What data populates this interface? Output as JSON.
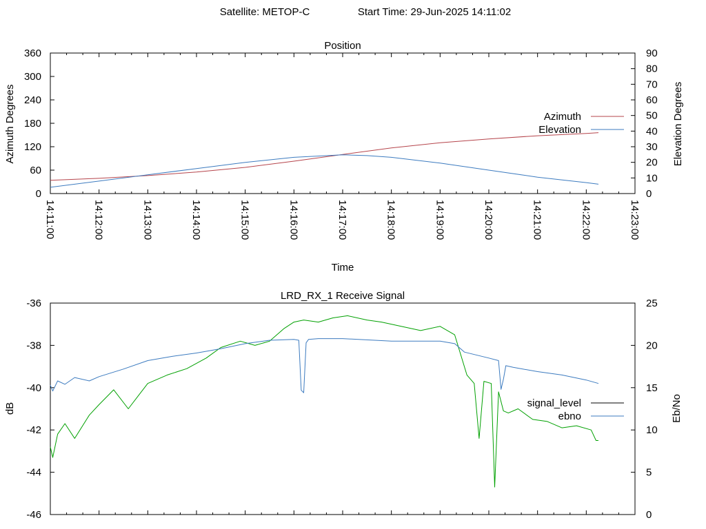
{
  "header": {
    "satellite": "Satellite: METOP-C",
    "start_time": "Start Time: 29-Jun-2025 14:11:02"
  },
  "chart_data": [
    {
      "type": "line",
      "title": "Position",
      "xlabel": "Time",
      "ylabel": "Azimuth Degrees",
      "y2label": "Elevation Degrees",
      "x_ticks": [
        "14:11:00",
        "14:12:00",
        "14:13:00",
        "14:14:00",
        "14:15:00",
        "14:16:00",
        "14:17:00",
        "14:18:00",
        "14:19:00",
        "14:20:00",
        "14:21:00",
        "14:22:00",
        "14:23:00"
      ],
      "xlim": [
        0,
        12
      ],
      "ylim": [
        0,
        360
      ],
      "y_ticks": [
        0,
        60,
        120,
        180,
        240,
        300,
        360
      ],
      "y2lim": [
        0,
        90
      ],
      "y2_ticks": [
        0,
        10,
        20,
        30,
        40,
        50,
        60,
        70,
        80,
        90
      ],
      "grid": false,
      "legend_position": "right",
      "x_unit": "minutes after 14:11:00",
      "series": [
        {
          "name": "Azimuth",
          "axis": "left",
          "color": "#b5434a",
          "x": [
            0,
            1,
            2,
            3,
            4,
            5,
            6,
            7,
            8,
            9,
            10,
            11,
            11.25
          ],
          "values": [
            34,
            39,
            46,
            55,
            67,
            83,
            100,
            117,
            130,
            140,
            148,
            154,
            156
          ]
        },
        {
          "name": "Elevation",
          "axis": "right",
          "color": "#3b7abf",
          "x": [
            0,
            1,
            2,
            3,
            4,
            5,
            6,
            6.5,
            7,
            8,
            9,
            10,
            11,
            11.25
          ],
          "values": [
            4,
            8,
            12,
            16,
            20,
            23.2,
            24.8,
            24.3,
            23.2,
            19.5,
            15,
            10.5,
            7,
            6
          ]
        }
      ]
    },
    {
      "type": "line",
      "title": "LRD_RX_1 Receive Signal",
      "xlabel": "",
      "ylabel": "dB",
      "y2label": "Eb/No",
      "xlim": [
        0,
        12
      ],
      "ylim": [
        -46,
        -36
      ],
      "y_ticks": [
        -46,
        -44,
        -42,
        -40,
        -38,
        -36
      ],
      "y2lim": [
        0,
        25
      ],
      "y2_ticks": [
        0,
        5,
        10,
        15,
        20,
        25
      ],
      "grid": false,
      "legend_position": "right",
      "x_unit": "minutes after 14:11:00",
      "series": [
        {
          "name": "signal_level",
          "axis": "left",
          "color": "#00a000",
          "x": [
            0,
            0.05,
            0.15,
            0.3,
            0.5,
            0.8,
            1.0,
            1.3,
            1.6,
            1.8,
            2.0,
            2.4,
            2.8,
            3.2,
            3.5,
            3.9,
            4.2,
            4.5,
            4.8,
            5.0,
            5.2,
            5.5,
            5.8,
            6.1,
            6.5,
            6.8,
            7.2,
            7.6,
            8.0,
            8.3,
            8.55,
            8.7,
            8.8,
            8.9,
            9.05,
            9.12,
            9.2,
            9.3,
            9.4,
            9.6,
            9.9,
            10.2,
            10.5,
            10.8,
            11.1,
            11.2,
            11.25
          ],
          "values": [
            -42.8,
            -43.3,
            -42.2,
            -41.7,
            -42.4,
            -41.3,
            -40.8,
            -40.1,
            -41.0,
            -40.4,
            -39.8,
            -39.4,
            -39.1,
            -38.6,
            -38.1,
            -37.8,
            -38.0,
            -37.8,
            -37.2,
            -36.9,
            -36.8,
            -36.9,
            -36.7,
            -36.6,
            -36.8,
            -36.9,
            -37.1,
            -37.3,
            -37.1,
            -37.5,
            -39.4,
            -39.8,
            -42.4,
            -39.7,
            -39.8,
            -44.7,
            -40.2,
            -41.1,
            -41.2,
            -41.0,
            -41.5,
            -41.6,
            -41.9,
            -41.8,
            -42.0,
            -42.5,
            -42.5
          ]
        },
        {
          "name": "ebno",
          "axis": "right",
          "color": "#3b7abf",
          "x": [
            0,
            0.05,
            0.15,
            0.3,
            0.5,
            0.8,
            1.0,
            1.5,
            2.0,
            2.5,
            3.0,
            3.5,
            4.0,
            4.5,
            5.0,
            5.1,
            5.15,
            5.2,
            5.25,
            5.3,
            5.5,
            6.0,
            7.0,
            8.0,
            8.3,
            8.5,
            9.0,
            9.2,
            9.25,
            9.3,
            9.35,
            9.5,
            10.0,
            10.5,
            11.0,
            11.25
          ],
          "values": [
            15.3,
            14.6,
            15.8,
            15.4,
            16.2,
            15.8,
            16.3,
            17.2,
            18.2,
            18.7,
            19.1,
            19.6,
            20.2,
            20.6,
            20.7,
            20.6,
            14.7,
            14.4,
            20.3,
            20.7,
            20.8,
            20.8,
            20.5,
            20.5,
            20.2,
            19.2,
            18.5,
            18.2,
            14.8,
            16.0,
            17.6,
            17.4,
            16.9,
            16.5,
            15.9,
            15.5
          ]
        }
      ]
    }
  ]
}
